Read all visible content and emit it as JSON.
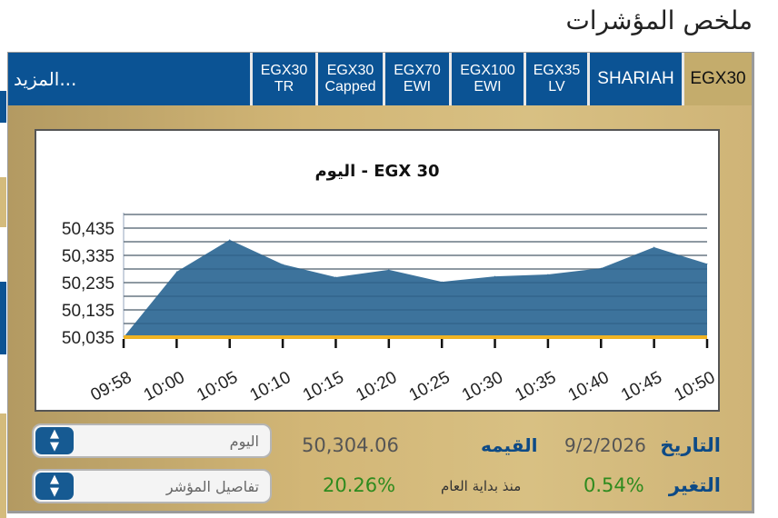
{
  "page_title": "ملخص المؤشرات",
  "tabs": [
    {
      "label": "EGX30",
      "active": true
    },
    {
      "label": "SHARIAH"
    },
    {
      "label": "EGX35 LV",
      "line1": "EGX35",
      "line2": "LV"
    },
    {
      "label": "EGX100 EWI",
      "line1": "EGX100",
      "line2": "EWI"
    },
    {
      "label": "EGX70 EWI",
      "line1": "EGX70",
      "line2": "EWI"
    },
    {
      "label": "EGX30 Capped",
      "line1": "EGX30",
      "line2": "Capped"
    },
    {
      "label": "EGX30 TR",
      "line1": "EGX30",
      "line2": "TR"
    }
  ],
  "more_label": "المزيد...",
  "colors": {
    "tab_bar": "#0b5394",
    "active_tab": "#c4ac6c",
    "area_fill": "#336c97",
    "baseline": "#f0b323",
    "positive": "#2e8b1e"
  },
  "chart_data": {
    "type": "area",
    "title": "EGX 30  - اليوم",
    "x": [
      "09:58",
      "10:00",
      "10:05",
      "10:10",
      "10:15",
      "10:20",
      "10:25",
      "10:30",
      "10:35",
      "10:40",
      "10:45",
      "10:50"
    ],
    "values": [
      50035,
      50275,
      50392,
      50302,
      50255,
      50282,
      50238,
      50258,
      50265,
      50288,
      50365,
      50304
    ],
    "yticks": [
      "50,035",
      "50,135",
      "50,235",
      "50,335",
      "50,435"
    ],
    "ylim": [
      50035,
      50485
    ],
    "grid": true
  },
  "info": {
    "date_label": "التاريخ",
    "date": "9/2/2026",
    "value_label": "القيمه",
    "value": "50,304.06",
    "change_label": "التغير",
    "change": "0.54%",
    "ytd_label": "منذ بداية العام",
    "ytd": "20.26%"
  },
  "selects": {
    "period": "اليوم",
    "details": "تفاصيل المؤشر"
  }
}
